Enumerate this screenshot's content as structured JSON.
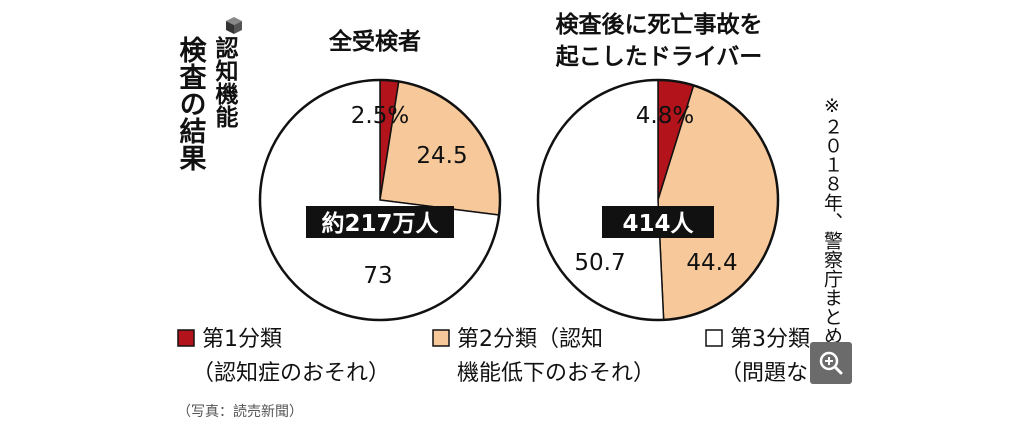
{
  "figure": {
    "heading": "認知機能検査の結果",
    "heading_col1": "認知機能",
    "heading_col2": "検査の結果",
    "source_note": "※２０１８年、警察庁まとめ",
    "caption": "（写真：読売新聞）"
  },
  "colors": {
    "category_1": "#b3141c",
    "category_2": "#f7c99a",
    "category_3": "#ffffff",
    "outline": "#111111",
    "label_box": "#111111",
    "zoom_button": "#6b6b6b"
  },
  "legend": [
    {
      "line1": "第1分類",
      "line2": "（認知症のおそれ）",
      "color": "#b3141c"
    },
    {
      "line1": "第2分類（認知",
      "line2": "機能低下のおそれ）",
      "color": "#f7c99a"
    },
    {
      "line1": "第3分類",
      "line2": "（問題なし）",
      "color": "#ffffff"
    }
  ],
  "chart_data": [
    {
      "type": "pie",
      "title": "全受検者",
      "center_label": "約217万人",
      "unit": "%",
      "slices": [
        {
          "category": "第1分類",
          "value": 2.5,
          "label": "2.5%"
        },
        {
          "category": "第2分類",
          "value": 24.5,
          "label": "24.5"
        },
        {
          "category": "第3分類",
          "value": 73,
          "label": "73"
        }
      ]
    },
    {
      "type": "pie",
      "title": "検査後に死亡事故を起こしたドライバー",
      "title_line1": "検査後に死亡事故を",
      "title_line2": "起こしたドライバー",
      "center_label": "414人",
      "unit": "%",
      "slices": [
        {
          "category": "第1分類",
          "value": 4.8,
          "label": "4.8%"
        },
        {
          "category": "第2分類",
          "value": 44.4,
          "label": "44.4"
        },
        {
          "category": "第3分類",
          "value": 50.7,
          "label": "50.7"
        }
      ]
    }
  ],
  "ui": {
    "zoom_icon": "zoom-in-icon"
  }
}
